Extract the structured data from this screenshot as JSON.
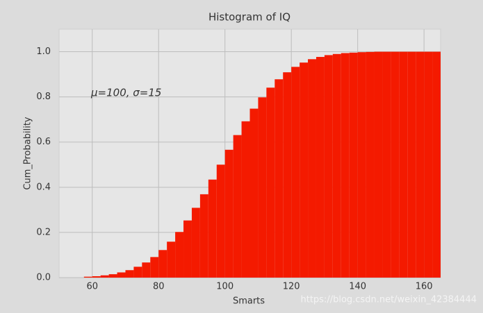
{
  "chart_data": {
    "type": "histogram",
    "title": "Histogram of IQ",
    "xlabel": "Smarts",
    "ylabel": "Cum_Probability",
    "annotation": "μ=100,  σ=15",
    "watermark": "https://blog.csdn.net/weixin_42384444",
    "bins": [
      57.5,
      60,
      62.5,
      65,
      67.5,
      70,
      72.5,
      75,
      77.5,
      80,
      82.5,
      85,
      87.5,
      90,
      92.5,
      95,
      97.5,
      100,
      102.5,
      105,
      107.5,
      110,
      112.5,
      115,
      117.5,
      120,
      122.5,
      125,
      127.5,
      130,
      132.5,
      135,
      137.5,
      140,
      142.5,
      145,
      147.5,
      150,
      152.5,
      155,
      157.5,
      160,
      162.5,
      165
    ],
    "values": [
      0.004,
      0.006,
      0.01,
      0.015,
      0.023,
      0.033,
      0.048,
      0.067,
      0.091,
      0.122,
      0.159,
      0.202,
      0.253,
      0.309,
      0.369,
      0.434,
      0.5,
      0.566,
      0.631,
      0.692,
      0.748,
      0.798,
      0.841,
      0.878,
      0.909,
      0.933,
      0.952,
      0.967,
      0.977,
      0.985,
      0.99,
      0.994,
      0.996,
      0.998,
      0.999,
      1,
      1,
      1,
      1,
      1,
      1,
      1,
      1
    ],
    "color": "#f41a00",
    "xlim": [
      50,
      165
    ],
    "ylim": [
      0,
      1.1
    ],
    "xticks": [
      60,
      80,
      100,
      120,
      140,
      160
    ],
    "yticks": [
      {
        "value": 0,
        "label": "0.0"
      },
      0.2,
      0.4,
      0.6,
      0.8,
      {
        "value": 1,
        "label": "1.0"
      }
    ],
    "grid": true
  }
}
